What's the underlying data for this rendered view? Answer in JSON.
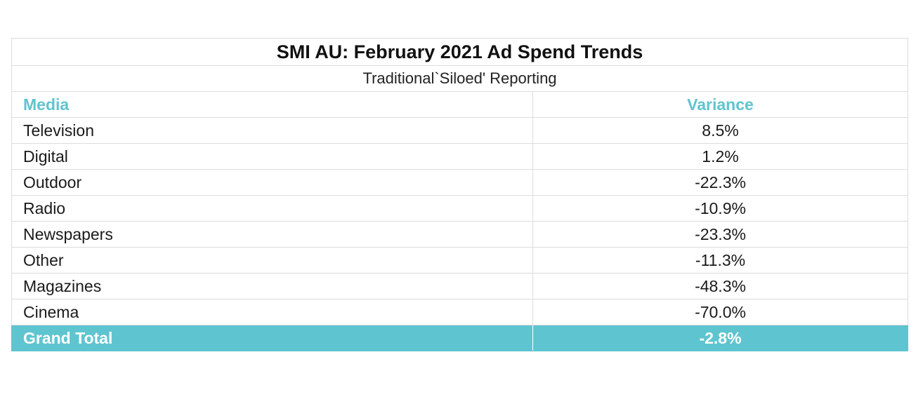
{
  "table": {
    "title": "SMI AU: February 2021 Ad Spend Trends",
    "subtitle": "Traditional`Siloed' Reporting",
    "headers": [
      "Media",
      "Variance"
    ],
    "rows": [
      {
        "media": "Television",
        "variance": "8.5%"
      },
      {
        "media": "Digital",
        "variance": "1.2%"
      },
      {
        "media": "Outdoor",
        "variance": "-22.3%"
      },
      {
        "media": "Radio",
        "variance": "-10.9%"
      },
      {
        "media": "Newspapers",
        "variance": "-23.3%"
      },
      {
        "media": "Other",
        "variance": "-11.3%"
      },
      {
        "media": "Magazines",
        "variance": "-48.3%"
      },
      {
        "media": "Cinema",
        "variance": "-70.0%"
      }
    ],
    "total": {
      "label": "Grand Total",
      "variance": "-2.8%"
    }
  },
  "colors": {
    "accent": "#5ec5d0",
    "grid": "#dcdcdc",
    "text": "#1a1a1a"
  }
}
